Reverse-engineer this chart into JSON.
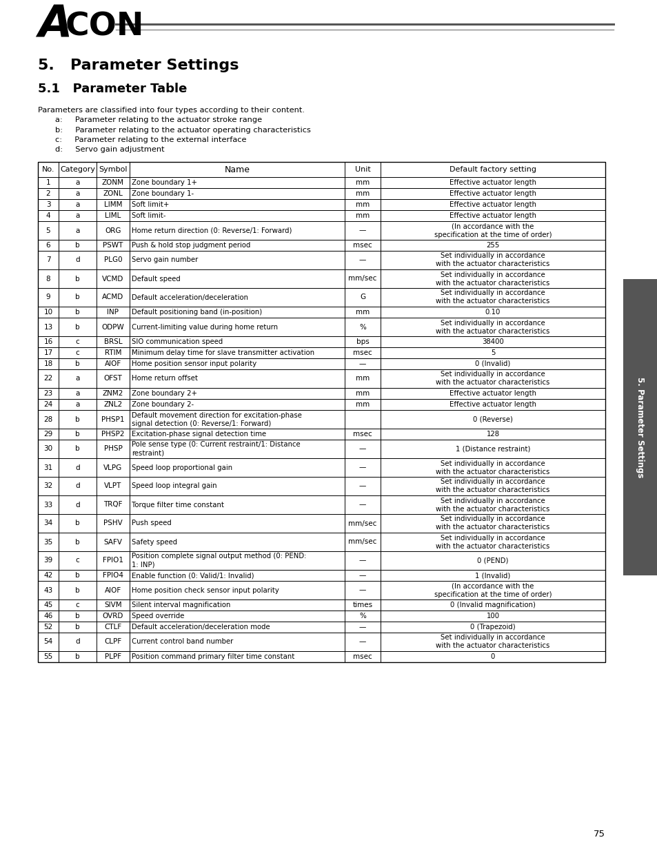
{
  "title_main": "5.   Parameter Settings",
  "title_sub": "5.1   Parameter Table",
  "intro_text": "Parameters are classified into four types according to their content.",
  "bullets": [
    "a:     Parameter relating to the actuator stroke range",
    "b:     Parameter relating to the actuator operating characteristics",
    "c:     Parameter relating to the external interface",
    "d:     Servo gain adjustment"
  ],
  "col_headers": [
    "No.",
    "Category",
    "Symbol",
    "Name",
    "Unit",
    "Default factory setting"
  ],
  "rows": [
    [
      "1",
      "a",
      "ZONM",
      "Zone boundary 1+",
      "mm",
      "Effective actuator length"
    ],
    [
      "2",
      "a",
      "ZONL",
      "Zone boundary 1-",
      "mm",
      "Effective actuator length"
    ],
    [
      "3",
      "a",
      "LIMM",
      "Soft limit+",
      "mm",
      "Effective actuator length"
    ],
    [
      "4",
      "a",
      "LIML",
      "Soft limit-",
      "mm",
      "Effective actuator length"
    ],
    [
      "5",
      "a",
      "ORG",
      "Home return direction (0: Reverse/1: Forward)",
      "—",
      "(In accordance with the\nspecification at the time of order)"
    ],
    [
      "6",
      "b",
      "PSWT",
      "Push & hold stop judgment period",
      "msec",
      "255"
    ],
    [
      "7",
      "d",
      "PLG0",
      "Servo gain number",
      "—",
      "Set individually in accordance\nwith the actuator characteristics"
    ],
    [
      "8",
      "b",
      "VCMD",
      "Default speed",
      "mm/sec",
      "Set individually in accordance\nwith the actuator characteristics"
    ],
    [
      "9",
      "b",
      "ACMD",
      "Default acceleration/deceleration",
      "G",
      "Set individually in accordance\nwith the actuator characteristics"
    ],
    [
      "10",
      "b",
      "INP",
      "Default positioning band (in-position)",
      "mm",
      "0.10"
    ],
    [
      "13",
      "b",
      "ODPW",
      "Current-limiting value during home return",
      "%",
      "Set individually in accordance\nwith the actuator characteristics"
    ],
    [
      "16",
      "c",
      "BRSL",
      "SIO communication speed",
      "bps",
      "38400"
    ],
    [
      "17",
      "c",
      "RTIM",
      "Minimum delay time for slave transmitter activation",
      "msec",
      "5"
    ],
    [
      "18",
      "b",
      "AIOF",
      "Home position sensor input polarity",
      "—",
      "0 (Invalid)"
    ],
    [
      "22",
      "a",
      "OFST",
      "Home return offset",
      "mm",
      "Set individually in accordance\nwith the actuator characteristics"
    ],
    [
      "23",
      "a",
      "ZNM2",
      "Zone boundary 2+",
      "mm",
      "Effective actuator length"
    ],
    [
      "24",
      "a",
      "ZNL2",
      "Zone boundary 2-",
      "mm",
      "Effective actuator length"
    ],
    [
      "28",
      "b",
      "PHSP1",
      "Default movement direction for excitation-phase\nsignal detection (0: Reverse/1: Forward)",
      "",
      "0 (Reverse)"
    ],
    [
      "29",
      "b",
      "PHSP2",
      "Excitation-phase signal detection time",
      "msec",
      "128"
    ],
    [
      "30",
      "b",
      "PHSP",
      "Pole sense type (0: Current restraint/1: Distance\nrestraint)",
      "—",
      "1 (Distance restraint)"
    ],
    [
      "31",
      "d",
      "VLPG",
      "Speed loop proportional gain",
      "—",
      "Set individually in accordance\nwith the actuator characteristics"
    ],
    [
      "32",
      "d",
      "VLPT",
      "Speed loop integral gain",
      "—",
      "Set individually in accordance\nwith the actuator characteristics"
    ],
    [
      "33",
      "d",
      "TRQF",
      "Torque filter time constant",
      "—",
      "Set individually in accordance\nwith the actuator characteristics"
    ],
    [
      "34",
      "b",
      "PSHV",
      "Push speed",
      "mm/sec",
      "Set individually in accordance\nwith the actuator characteristics"
    ],
    [
      "35",
      "b",
      "SAFV",
      "Safety speed",
      "mm/sec",
      "Set individually in accordance\nwith the actuator characteristics"
    ],
    [
      "39",
      "c",
      "FPIO1",
      "Position complete signal output method (0: PEND:\n1: INP)",
      "—",
      "0 (PEND)"
    ],
    [
      "42",
      "b",
      "FPIO4",
      "Enable function (0: Valid/1: Invalid)",
      "—",
      "1 (Invalid)"
    ],
    [
      "43",
      "b",
      "AIOF",
      "Home position check sensor input polarity",
      "—",
      "(In accordance with the\nspecification at the time of order)"
    ],
    [
      "45",
      "c",
      "SIVM",
      "Silent interval magnification",
      "times",
      "0 (Invalid magnification)"
    ],
    [
      "46",
      "b",
      "OVRD",
      "Speed override",
      "%",
      "100"
    ],
    [
      "52",
      "b",
      "CTLF",
      "Default acceleration/deceleration mode",
      "—",
      "0 (Trapezoid)"
    ],
    [
      "54",
      "d",
      "CLPF",
      "Current control band number",
      "—",
      "Set individually in accordance\nwith the actuator characteristics"
    ],
    [
      "55",
      "b",
      "PLPF",
      "Position command primary filter time constant",
      "msec",
      "0"
    ]
  ],
  "sidebar_text": "5. Parameter Settings",
  "page_number": "75",
  "bg_color": "#ffffff",
  "sidebar_bg": "#555555"
}
